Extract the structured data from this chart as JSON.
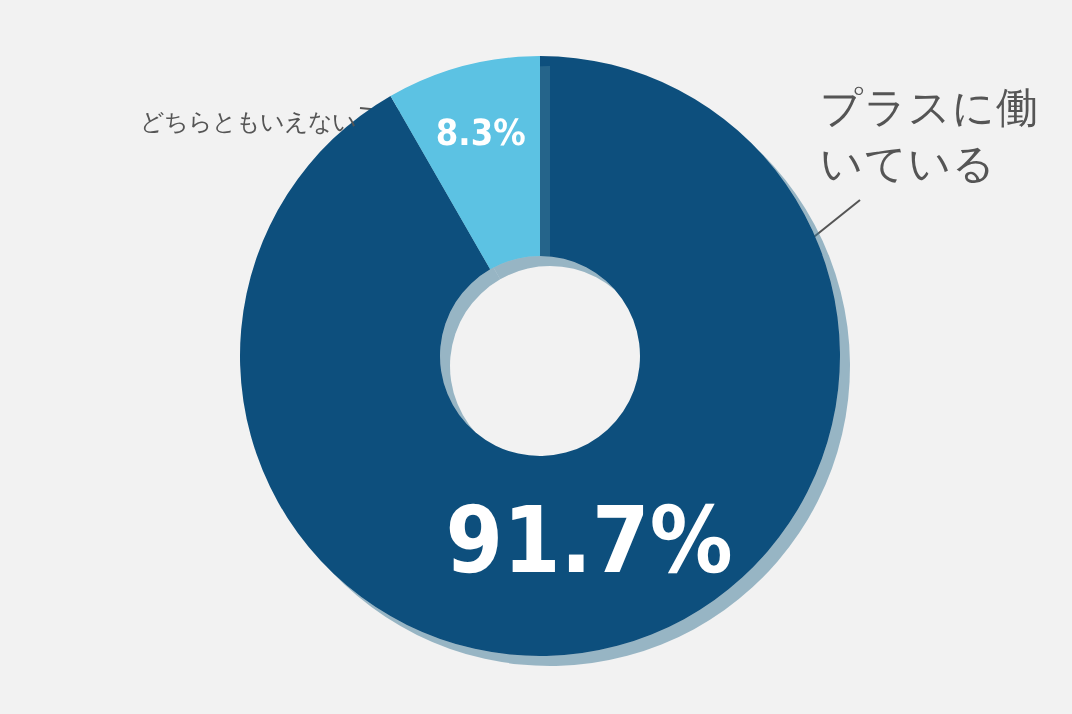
{
  "chart_data": {
    "type": "donut",
    "categories": [
      "プラスに働いている",
      "どちらともいえない"
    ],
    "values": [
      91.7,
      8.3
    ],
    "colors": [
      "#0d4f7d",
      "#5bc2e3"
    ],
    "value_labels": [
      "91.7%",
      "8.3%"
    ]
  }
}
